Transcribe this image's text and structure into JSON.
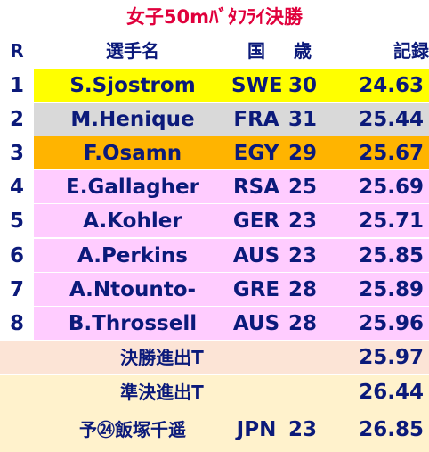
{
  "title": "女子50mﾊﾞﾀﾌﾗｲ決勝",
  "header": {
    "rank": "R",
    "name": "選手名",
    "country": "国",
    "age": "歳",
    "record": "記録"
  },
  "rows": [
    {
      "rank": "1",
      "name": "S.Sjostrom",
      "country": "SWE",
      "age": "30",
      "time": "24.63",
      "color": "#FFFF00"
    },
    {
      "rank": "2",
      "name": "M.Henique",
      "country": "FRA",
      "age": "31",
      "time": "25.44",
      "color": "#D9D9D9"
    },
    {
      "rank": "3",
      "name": "F.Osamn",
      "country": "EGY",
      "age": "29",
      "time": "25.67",
      "color": "#FFB400"
    },
    {
      "rank": "4",
      "name": "E.Gallagher",
      "country": "RSA",
      "age": "25",
      "time": "25.69",
      "color": "#FFCCFF"
    },
    {
      "rank": "5",
      "name": "A.Kohler",
      "country": "GER",
      "age": "23",
      "time": "25.71",
      "color": "#FFCCFF"
    },
    {
      "rank": "6",
      "name": "A.Perkins",
      "country": "AUS",
      "age": "23",
      "time": "25.85",
      "color": "#FFCCFF"
    },
    {
      "rank": "7",
      "name": "A.Ntounto-",
      "country": "GRE",
      "age": "28",
      "time": "25.89",
      "color": "#FFCCFF"
    },
    {
      "rank": "8",
      "name": "B.Throssell",
      "country": "AUS",
      "age": "28",
      "time": "25.96",
      "color": "#FFCCFF"
    }
  ],
  "footer": {
    "final_label": "決勝進出T",
    "final_time": "25.97",
    "final_color": "#FCE4D6",
    "semi_label": "準決進出T",
    "semi_time": "26.44",
    "semi_color": "#FFF2CC",
    "jpn_label": "予㉔飯塚千遥",
    "jpn_country": "JPN",
    "jpn_age": "23",
    "jpn_time": "26.85"
  },
  "colors": {
    "title": "#E0003C",
    "text": "#0B1A7A"
  }
}
